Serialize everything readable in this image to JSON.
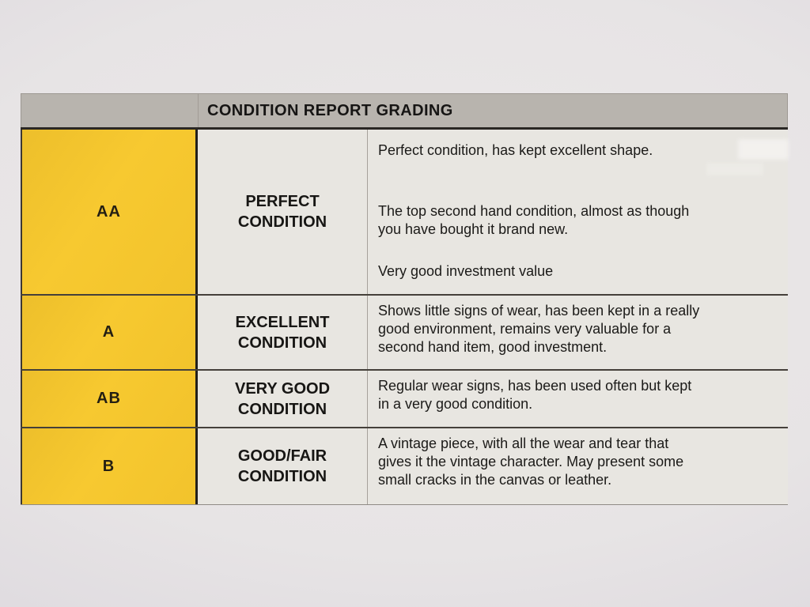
{
  "table": {
    "title": "CONDITION REPORT GRADING",
    "rows": [
      {
        "grade": "AA",
        "condition": "PERFECT\nCONDITION",
        "description": [
          "Perfect condition, has kept excellent shape.",
          "The top second hand condition, almost as though\nyou have bought it brand new.",
          "Very good investment value"
        ]
      },
      {
        "grade": "A",
        "condition": "EXCELLENT\nCONDITION",
        "description": [
          "Shows little signs of wear, has been kept in a really\ngood environment, remains very valuable for a\nsecond hand item, good investment."
        ]
      },
      {
        "grade": "AB",
        "condition": "VERY GOOD\nCONDITION",
        "description": [
          "Regular wear signs, has been used often but kept\nin a very good condition."
        ]
      },
      {
        "grade": "B",
        "condition": "GOOD/FAIR\nCONDITION",
        "description": [
          "A vintage piece, with all the wear and tear that\ngives it the vintage character. May present some\nsmall cracks in the canvas or leather."
        ]
      }
    ]
  },
  "colors": {
    "grade_column": "#f7c930",
    "header_bg": "#b8b4ae",
    "cell_bg": "#e8e6e1"
  }
}
